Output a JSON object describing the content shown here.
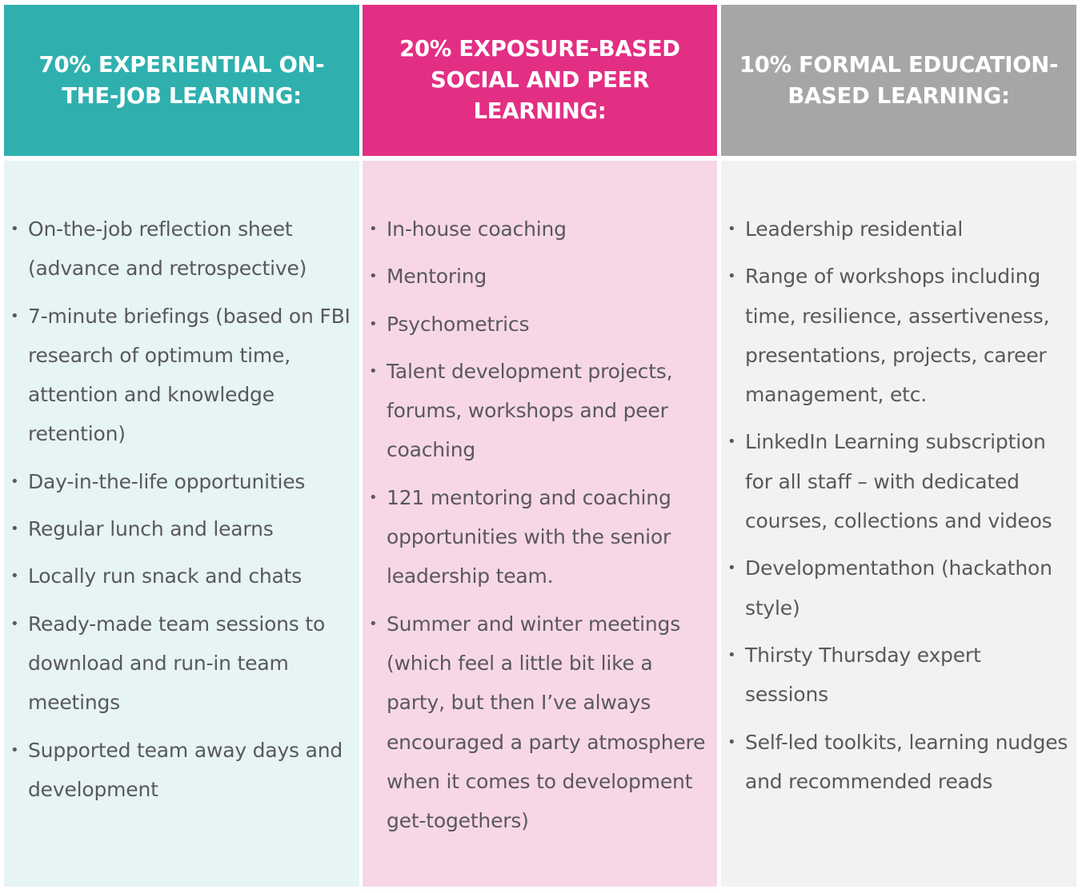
{
  "columns": [
    {
      "header": "70% EXPERIENTIAL ON-THE-JOB LEARNING:",
      "header_color": "#2FB0AF",
      "panel_color": "#E6F4F3",
      "items": [
        "On-the-job reflection sheet (advance and retrospective)",
        "7-minute briefings (based on FBI research of optimum time, attention and knowledge retention)",
        "Day-in-the-life opportunities",
        "Regular lunch and learns",
        "Locally run snack and chats",
        "Ready-made team sessions to download and run-in team meetings",
        "Supported team away days and development"
      ]
    },
    {
      "header": "20% EXPOSURE-BASED SOCIAL AND PEER LEARNING:",
      "header_color": "#E22F84",
      "panel_color": "#F7D7E7",
      "items": [
        "In-house coaching",
        "Mentoring",
        "Psychometrics",
        "Talent development projects, forums, workshops and peer coaching",
        "121 mentoring and coaching opportunities with the senior leadership team.",
        "Summer and winter meetings (which feel a little bit like a party, but then I’ve always encouraged a party atmosphere when it comes to development get-togethers)"
      ]
    },
    {
      "header": "10% FORMAL EDUCATION-BASED LEARNING:",
      "header_color": "#A6A6A6",
      "panel_color": "#F2F2F2",
      "items": [
        "Leadership residential",
        "Range of workshops including time, resilience, assertiveness, presentations, projects, career management, etc.",
        "LinkedIn Learning subscription for all staff – with dedicated courses, collections and videos",
        "Developmentathon (hackathon style)",
        "Thirsty Thursday expert sessions",
        "Self-led toolkits, learning nudges and recommended reads"
      ]
    }
  ]
}
